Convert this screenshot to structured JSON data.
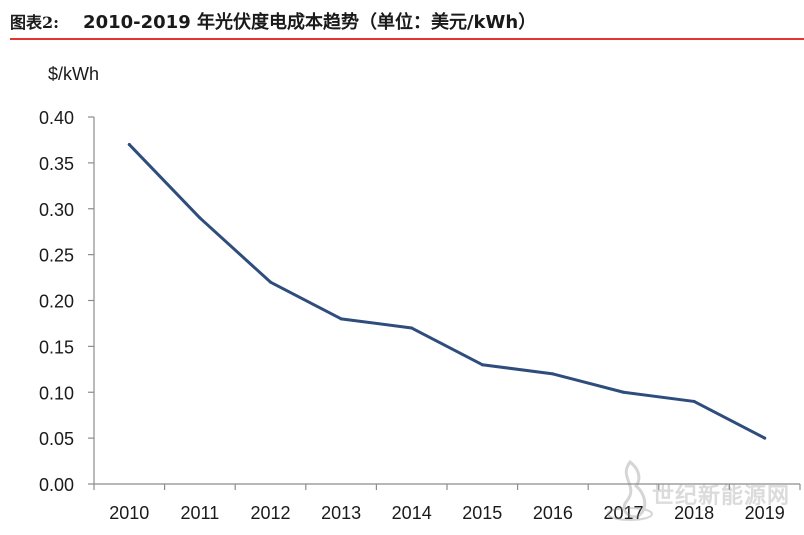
{
  "figure": {
    "label": "图表2:",
    "title": "2010-2019 年光伏度电成本趋势（单位：美元/kWh）",
    "accent_color": "#e3342f"
  },
  "watermark": {
    "text": "世纪新能源网",
    "icon": "flame-logo-icon"
  },
  "chart_data": {
    "type": "line",
    "title": "",
    "xlabel": "",
    "ylabel": "$/kWh",
    "categories": [
      "2010",
      "2011",
      "2012",
      "2013",
      "2014",
      "2015",
      "2016",
      "2017",
      "2018",
      "2019"
    ],
    "series": [
      {
        "name": "",
        "color": "#2e4d7d",
        "values": [
          0.37,
          0.29,
          0.22,
          0.18,
          0.17,
          0.13,
          0.12,
          0.1,
          0.09,
          0.05
        ]
      }
    ],
    "ylim": [
      0,
      0.4
    ],
    "yticks": [
      "0.00",
      "0.05",
      "0.10",
      "0.15",
      "0.20",
      "0.25",
      "0.30",
      "0.35",
      "0.40"
    ],
    "grid": false,
    "legend": "none"
  }
}
